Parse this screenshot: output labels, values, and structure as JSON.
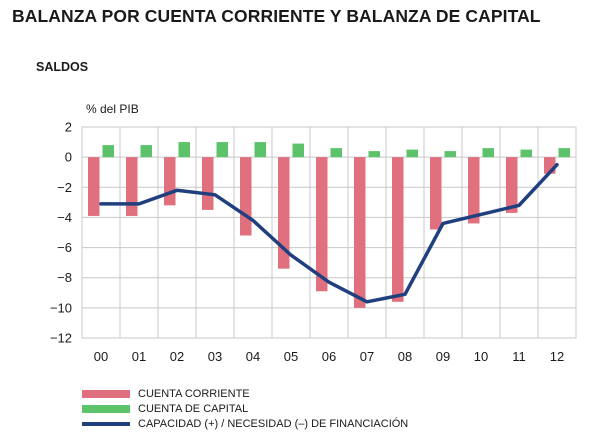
{
  "title": "BALANZA POR CUENTA CORRIENTE Y BALANZA DE CAPITAL",
  "subtitle": "SALDOS",
  "chart_data": {
    "type": "bar",
    "ylabel": "% del PIB",
    "categories": [
      "00",
      "01",
      "02",
      "03",
      "04",
      "05",
      "06",
      "07",
      "08",
      "09",
      "10",
      "11",
      "12"
    ],
    "ylim": [
      -12,
      2
    ],
    "yticks": [
      2,
      0,
      -2,
      -4,
      -6,
      -8,
      -10,
      -12
    ],
    "grid": true,
    "legend_position": "bottom",
    "series": [
      {
        "name": "CUENTA CORRIENTE",
        "type": "bar",
        "color": "#e0707d",
        "values": [
          -3.9,
          -3.9,
          -3.2,
          -3.5,
          -5.2,
          -7.4,
          -8.9,
          -10.0,
          -9.6,
          -4.8,
          -4.4,
          -3.7,
          -1.1
        ]
      },
      {
        "name": "CUENTA DE CAPITAL",
        "type": "bar",
        "color": "#5cc36b",
        "values": [
          0.8,
          0.8,
          1.0,
          1.0,
          1.0,
          0.9,
          0.6,
          0.4,
          0.5,
          0.4,
          0.6,
          0.5,
          0.6
        ]
      },
      {
        "name": "CAPACIDAD (+) / NECESIDAD (–) DE FINANCIACIÓN",
        "type": "line",
        "color": "#1f3f7f",
        "values": [
          -3.1,
          -3.1,
          -2.2,
          -2.5,
          -4.2,
          -6.5,
          -8.3,
          -9.6,
          -9.1,
          -4.4,
          -3.8,
          -3.2,
          -0.5
        ]
      }
    ]
  }
}
